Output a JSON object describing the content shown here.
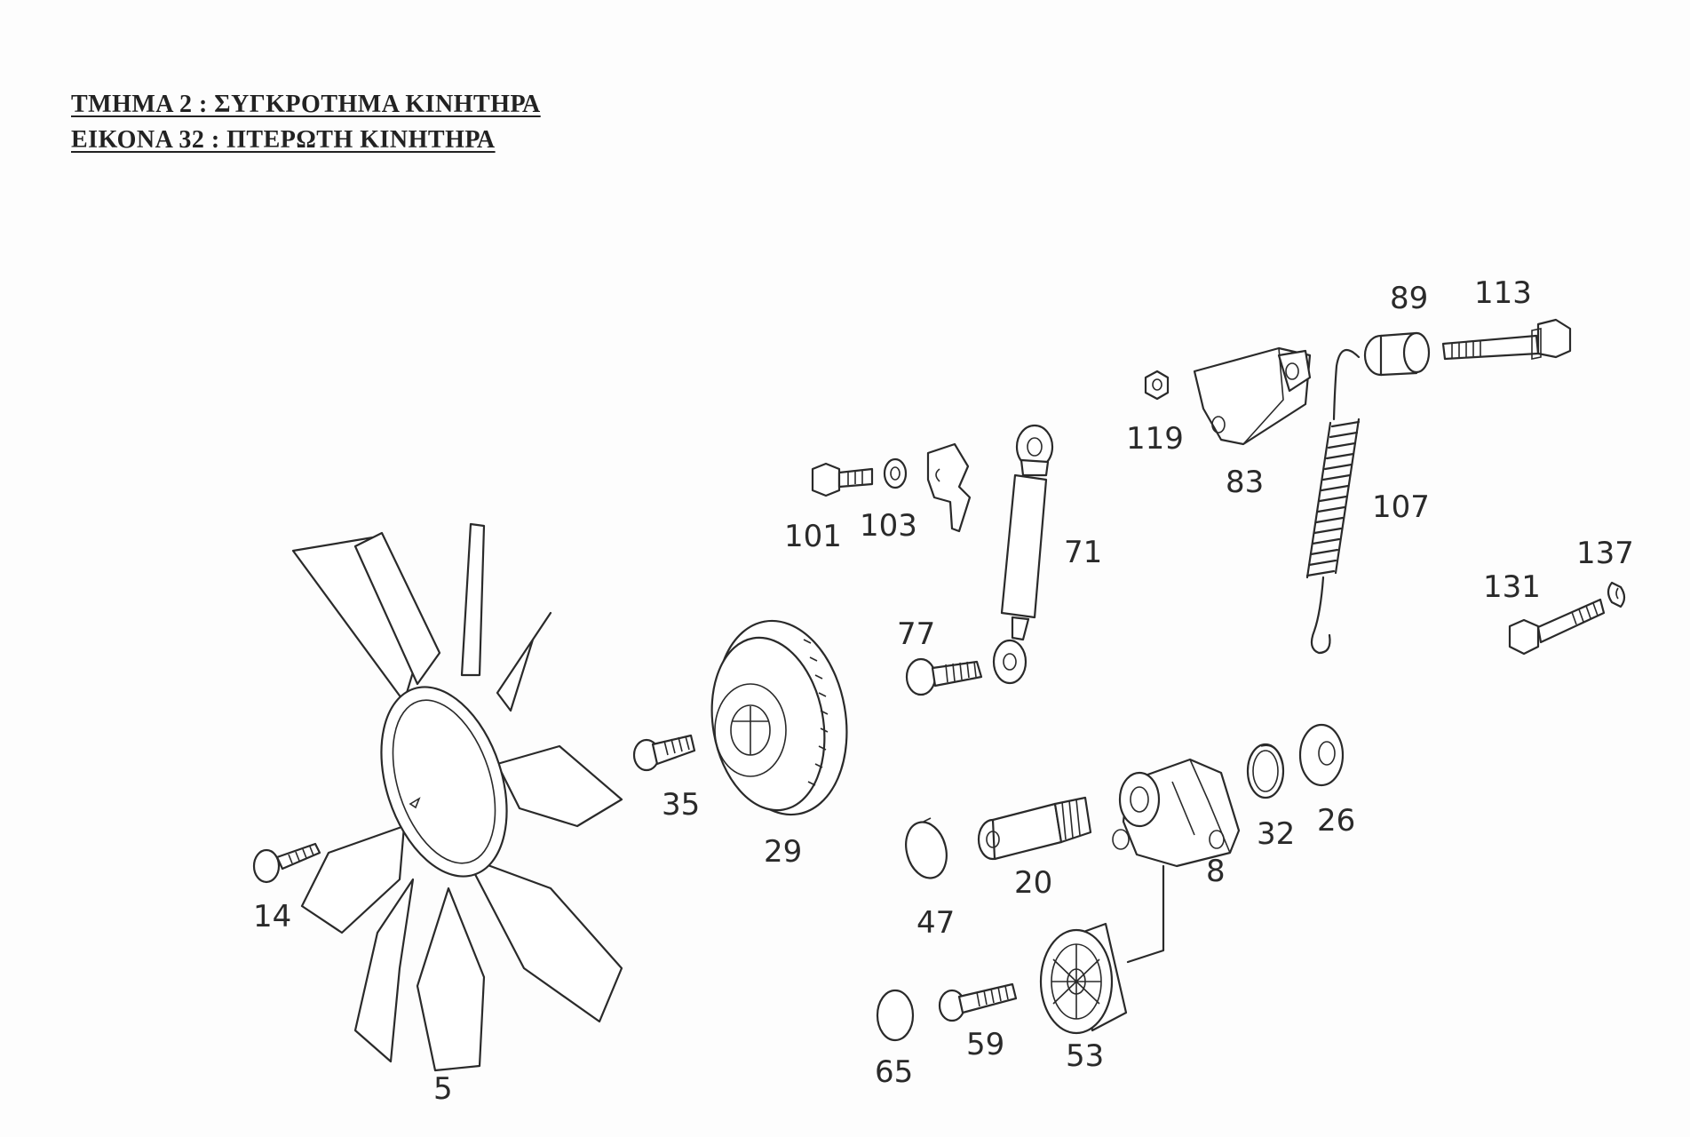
{
  "header": {
    "section_line": "ΤΜΗΜΑ  2  :  ΣΥΓΚΡΟΤΗΜΑ ΚΙΝΗΤΗΡΑ",
    "figure_line": "ΕΙΚΟΝΑ 32 : ΠΤΕΡΩΤΗ ΚΙΝΗΤΗΡΑ"
  },
  "callouts": {
    "fan": "5",
    "bolt_fan": "14",
    "screw_clutch": "35",
    "viscous_clutch": "29",
    "bolt_bracket": "101",
    "washer_bracket": "103",
    "damper": "71",
    "bolt_damper": "77",
    "nut": "119",
    "tensioner_bracket": "83",
    "spring_sleeve": "89",
    "long_bolt": "113",
    "spring": "107",
    "bolt_lower": "131",
    "clip_lower": "137",
    "cap_pin": "47",
    "pin": "20",
    "tensioner_arm": "8",
    "seal_ring": "32",
    "bushing": "26",
    "pulley": "53",
    "screw_pulley": "59",
    "cover_cap": "65"
  }
}
